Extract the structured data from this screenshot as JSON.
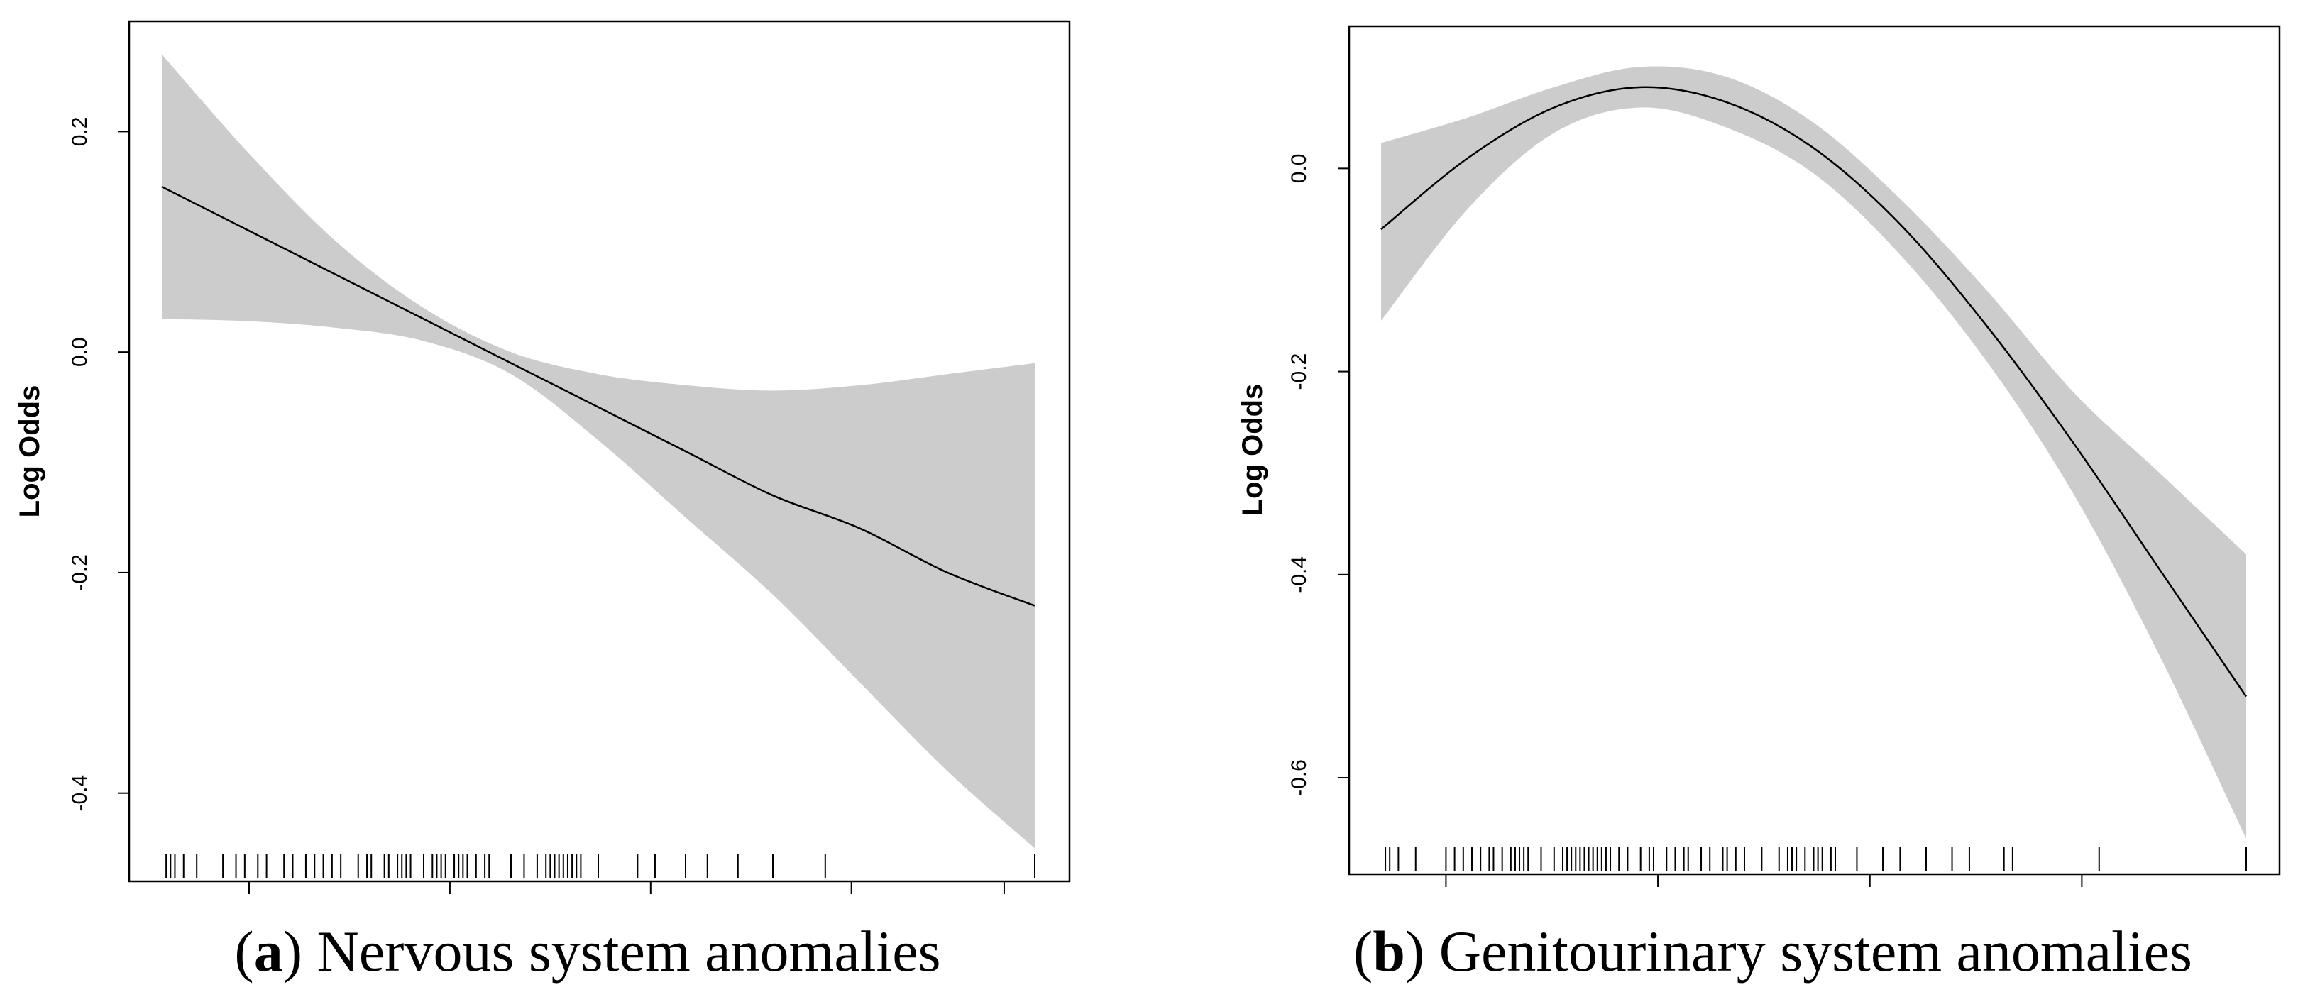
{
  "colors": {
    "band": "#cccccc",
    "line": "#000000",
    "axis": "#000000"
  },
  "chart_data": [
    {
      "type": "line",
      "panel_letter": "a",
      "caption": "Nervous system anomalies",
      "ylabel": "Log Odds",
      "xlabel": "",
      "grid": false,
      "xlim": [
        0.0,
        1.0
      ],
      "ylim": [
        -0.48,
        0.3
      ],
      "y_ticks": [
        0.2,
        0.0,
        -0.2,
        -0.4
      ],
      "y_tick_labels": [
        "0.2",
        "0.0",
        "-0.2",
        "-0.4"
      ],
      "x_ticks": [
        0.1,
        0.33,
        0.56,
        0.79,
        0.965
      ],
      "series": [
        {
          "name": "fit",
          "x": [
            0.0,
            0.1,
            0.2,
            0.3,
            0.4,
            0.5,
            0.6,
            0.7,
            0.8,
            0.9,
            1.0
          ],
          "y": [
            0.15,
            0.11,
            0.07,
            0.03,
            -0.01,
            -0.05,
            -0.09,
            -0.13,
            -0.16,
            -0.2,
            -0.23
          ]
        },
        {
          "name": "ci_upper",
          "x": [
            0.0,
            0.1,
            0.2,
            0.3,
            0.4,
            0.5,
            0.6,
            0.7,
            0.8,
            0.9,
            1.0
          ],
          "y": [
            0.27,
            0.18,
            0.1,
            0.04,
            0.0,
            -0.02,
            -0.03,
            -0.035,
            -0.03,
            -0.02,
            -0.01
          ]
        },
        {
          "name": "ci_lower",
          "x": [
            0.0,
            0.1,
            0.2,
            0.3,
            0.4,
            0.5,
            0.6,
            0.7,
            0.8,
            0.9,
            1.0
          ],
          "y": [
            0.03,
            0.028,
            0.022,
            0.01,
            -0.02,
            -0.08,
            -0.15,
            -0.22,
            -0.3,
            -0.38,
            -0.45
          ]
        }
      ],
      "rug": [
        0.005,
        0.01,
        0.015,
        0.025,
        0.04,
        0.07,
        0.085,
        0.095,
        0.11,
        0.12,
        0.14,
        0.15,
        0.165,
        0.175,
        0.185,
        0.195,
        0.205,
        0.225,
        0.235,
        0.24,
        0.255,
        0.26,
        0.27,
        0.275,
        0.28,
        0.285,
        0.3,
        0.31,
        0.315,
        0.32,
        0.325,
        0.335,
        0.34,
        0.345,
        0.35,
        0.36,
        0.37,
        0.375,
        0.4,
        0.415,
        0.43,
        0.44,
        0.445,
        0.45,
        0.455,
        0.46,
        0.465,
        0.47,
        0.475,
        0.48,
        0.5,
        0.545,
        0.565,
        0.6,
        0.625,
        0.66,
        0.7,
        0.76,
        1.0
      ]
    },
    {
      "type": "line",
      "panel_letter": "b",
      "caption": "Genitourinary system anomalies",
      "ylabel": "Log Odds",
      "xlabel": "",
      "grid": false,
      "xlim": [
        0.0,
        1.0
      ],
      "ylim": [
        -0.695,
        0.14
      ],
      "y_ticks": [
        0.0,
        -0.2,
        -0.4,
        -0.6
      ],
      "y_tick_labels": [
        "0.0",
        "-0.2",
        "-0.4",
        "-0.6"
      ],
      "x_ticks": [
        0.075,
        0.32,
        0.565,
        0.81
      ],
      "series": [
        {
          "name": "fit",
          "x": [
            0.0,
            0.1,
            0.2,
            0.3,
            0.4,
            0.5,
            0.6,
            0.7,
            0.8,
            0.9,
            1.0
          ],
          "y": [
            -0.06,
            0.01,
            0.06,
            0.08,
            0.065,
            0.02,
            -0.055,
            -0.155,
            -0.27,
            -0.395,
            -0.52
          ]
        },
        {
          "name": "ci_upper",
          "x": [
            0.0,
            0.1,
            0.2,
            0.3,
            0.4,
            0.5,
            0.6,
            0.7,
            0.8,
            0.9,
            1.0
          ],
          "y": [
            0.025,
            0.05,
            0.08,
            0.1,
            0.09,
            0.045,
            -0.03,
            -0.12,
            -0.22,
            -0.3,
            -0.38
          ]
        },
        {
          "name": "ci_lower",
          "x": [
            0.0,
            0.1,
            0.2,
            0.3,
            0.4,
            0.5,
            0.6,
            0.7,
            0.8,
            0.9,
            1.0
          ],
          "y": [
            -0.15,
            -0.04,
            0.035,
            0.06,
            0.04,
            -0.005,
            -0.085,
            -0.19,
            -0.32,
            -0.48,
            -0.66
          ]
        }
      ],
      "rug": [
        0.005,
        0.01,
        0.02,
        0.04,
        0.075,
        0.085,
        0.095,
        0.105,
        0.115,
        0.125,
        0.13,
        0.14,
        0.15,
        0.155,
        0.16,
        0.165,
        0.17,
        0.185,
        0.2,
        0.21,
        0.215,
        0.22,
        0.225,
        0.23,
        0.235,
        0.24,
        0.245,
        0.25,
        0.255,
        0.26,
        0.265,
        0.275,
        0.285,
        0.3,
        0.31,
        0.315,
        0.33,
        0.34,
        0.35,
        0.355,
        0.37,
        0.38,
        0.395,
        0.4,
        0.41,
        0.42,
        0.44,
        0.46,
        0.47,
        0.475,
        0.48,
        0.49,
        0.5,
        0.505,
        0.51,
        0.52,
        0.525,
        0.55,
        0.58,
        0.6,
        0.63,
        0.66,
        0.68,
        0.72,
        0.73,
        0.83,
        1.0
      ]
    }
  ]
}
